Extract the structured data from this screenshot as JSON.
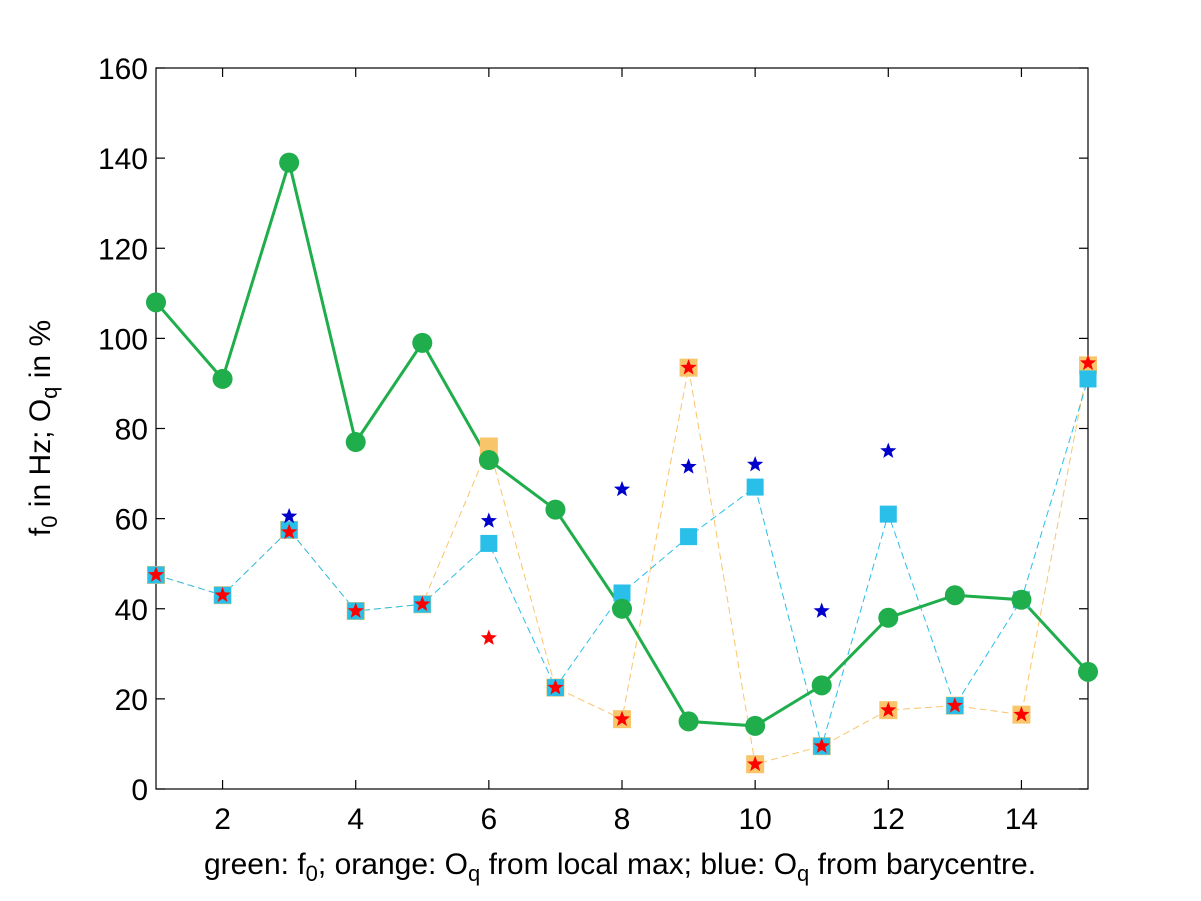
{
  "chart_data": {
    "type": "line",
    "title": "",
    "xlabel": {
      "parts": [
        "green: f",
        "0",
        "; orange: O",
        "q",
        " from local max; blue: O",
        "q",
        " from barycentre."
      ]
    },
    "ylabel": {
      "parts": [
        "f",
        "0",
        " in Hz; O",
        "q",
        " in %"
      ]
    },
    "xlim": [
      1,
      15
    ],
    "ylim": [
      0,
      160
    ],
    "xticks": [
      2,
      4,
      6,
      8,
      10,
      12,
      14
    ],
    "yticks": [
      0,
      20,
      40,
      60,
      80,
      100,
      120,
      140,
      160
    ],
    "grid": false,
    "colors": {
      "green": "#1fae4b",
      "orange": "#f9c56b",
      "blue": "#29bfe8",
      "red_star": "#ff0000",
      "blue_star": "#0000cc"
    },
    "x": [
      1,
      2,
      3,
      4,
      5,
      6,
      7,
      8,
      9,
      10,
      11,
      12,
      13,
      14,
      15
    ],
    "series": [
      {
        "key": "f0",
        "values": [
          108,
          91,
          139,
          77,
          99,
          73,
          62,
          40,
          15,
          14,
          23,
          38,
          43,
          42,
          26
        ]
      },
      {
        "key": "oq_local_max",
        "values": [
          47.5,
          43,
          57.5,
          39.5,
          41,
          76,
          22.5,
          15.5,
          93.5,
          5.5,
          9.5,
          17.5,
          18.5,
          16.5,
          94
        ]
      },
      {
        "key": "oq_barycentre",
        "values": [
          47.5,
          43,
          57.5,
          39.5,
          41,
          54.5,
          22.5,
          43.5,
          56,
          67,
          9.5,
          61,
          18.5,
          42,
          91
        ]
      },
      {
        "key": "red_stars",
        "points": [
          [
            1,
            47.5
          ],
          [
            2,
            43
          ],
          [
            3,
            57
          ],
          [
            4,
            39.5
          ],
          [
            5,
            41
          ],
          [
            6,
            33.5
          ],
          [
            7,
            22.5
          ],
          [
            8,
            15.5
          ],
          [
            9,
            93.5
          ],
          [
            10,
            5.5
          ],
          [
            11,
            9.5
          ],
          [
            12,
            17.5
          ],
          [
            13,
            18.5
          ],
          [
            14,
            16.5
          ],
          [
            15,
            94.5
          ]
        ]
      },
      {
        "key": "blue_stars",
        "points": [
          [
            3,
            60.5
          ],
          [
            6,
            59.5
          ],
          [
            8,
            66.5
          ],
          [
            9,
            71.5
          ],
          [
            10,
            72
          ],
          [
            11,
            39.5
          ],
          [
            12,
            75
          ]
        ]
      }
    ]
  }
}
